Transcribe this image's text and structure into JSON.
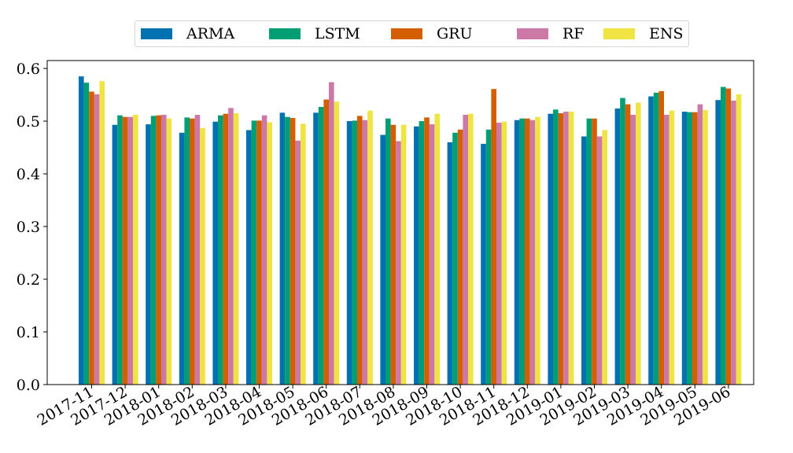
{
  "chart_data": {
    "type": "bar",
    "categories": [
      "2017-11",
      "2017-12",
      "2018-01",
      "2018-02",
      "2018-03",
      "2018-04",
      "2018-05",
      "2018-06",
      "2018-07",
      "2018-08",
      "2018-09",
      "2018-10",
      "2018-11",
      "2018-12",
      "2019-01",
      "2019-02",
      "2019-03",
      "2019-04",
      "2019-05",
      "2019-06"
    ],
    "series": [
      {
        "name": "ARMA",
        "color": "#0072B2",
        "values": [
          0.585,
          0.493,
          0.494,
          0.478,
          0.499,
          0.483,
          0.516,
          0.516,
          0.5,
          0.474,
          0.49,
          0.46,
          0.457,
          0.502,
          0.514,
          0.471,
          0.524,
          0.547,
          0.518,
          0.54
        ]
      },
      {
        "name": "LSTM",
        "color": "#009E73",
        "values": [
          0.573,
          0.511,
          0.51,
          0.507,
          0.511,
          0.501,
          0.508,
          0.527,
          0.501,
          0.505,
          0.5,
          0.478,
          0.484,
          0.505,
          0.522,
          0.505,
          0.544,
          0.554,
          0.517,
          0.565
        ]
      },
      {
        "name": "GRU",
        "color": "#D55E00",
        "values": [
          0.556,
          0.508,
          0.511,
          0.505,
          0.514,
          0.501,
          0.506,
          0.541,
          0.51,
          0.493,
          0.507,
          0.484,
          0.561,
          0.505,
          0.515,
          0.505,
          0.532,
          0.557,
          0.517,
          0.562
        ]
      },
      {
        "name": "RF",
        "color": "#CC79A7",
        "values": [
          0.551,
          0.508,
          0.512,
          0.512,
          0.525,
          0.511,
          0.463,
          0.574,
          0.502,
          0.462,
          0.494,
          0.512,
          0.497,
          0.502,
          0.518,
          0.471,
          0.512,
          0.512,
          0.532,
          0.539
        ]
      },
      {
        "name": "ENS",
        "color": "#F0E442",
        "values": [
          0.576,
          0.512,
          0.505,
          0.487,
          0.515,
          0.498,
          0.495,
          0.537,
          0.52,
          0.493,
          0.514,
          0.514,
          0.499,
          0.508,
          0.518,
          0.483,
          0.535,
          0.52,
          0.521,
          0.551
        ]
      }
    ],
    "yticks": [
      "0.0",
      "0.1",
      "0.2",
      "0.3",
      "0.4",
      "0.5",
      "0.6"
    ],
    "ylim": [
      0.0,
      0.615
    ],
    "xlabel": "",
    "ylabel": "",
    "title": "",
    "grid": false,
    "legend_position": "top-center"
  }
}
